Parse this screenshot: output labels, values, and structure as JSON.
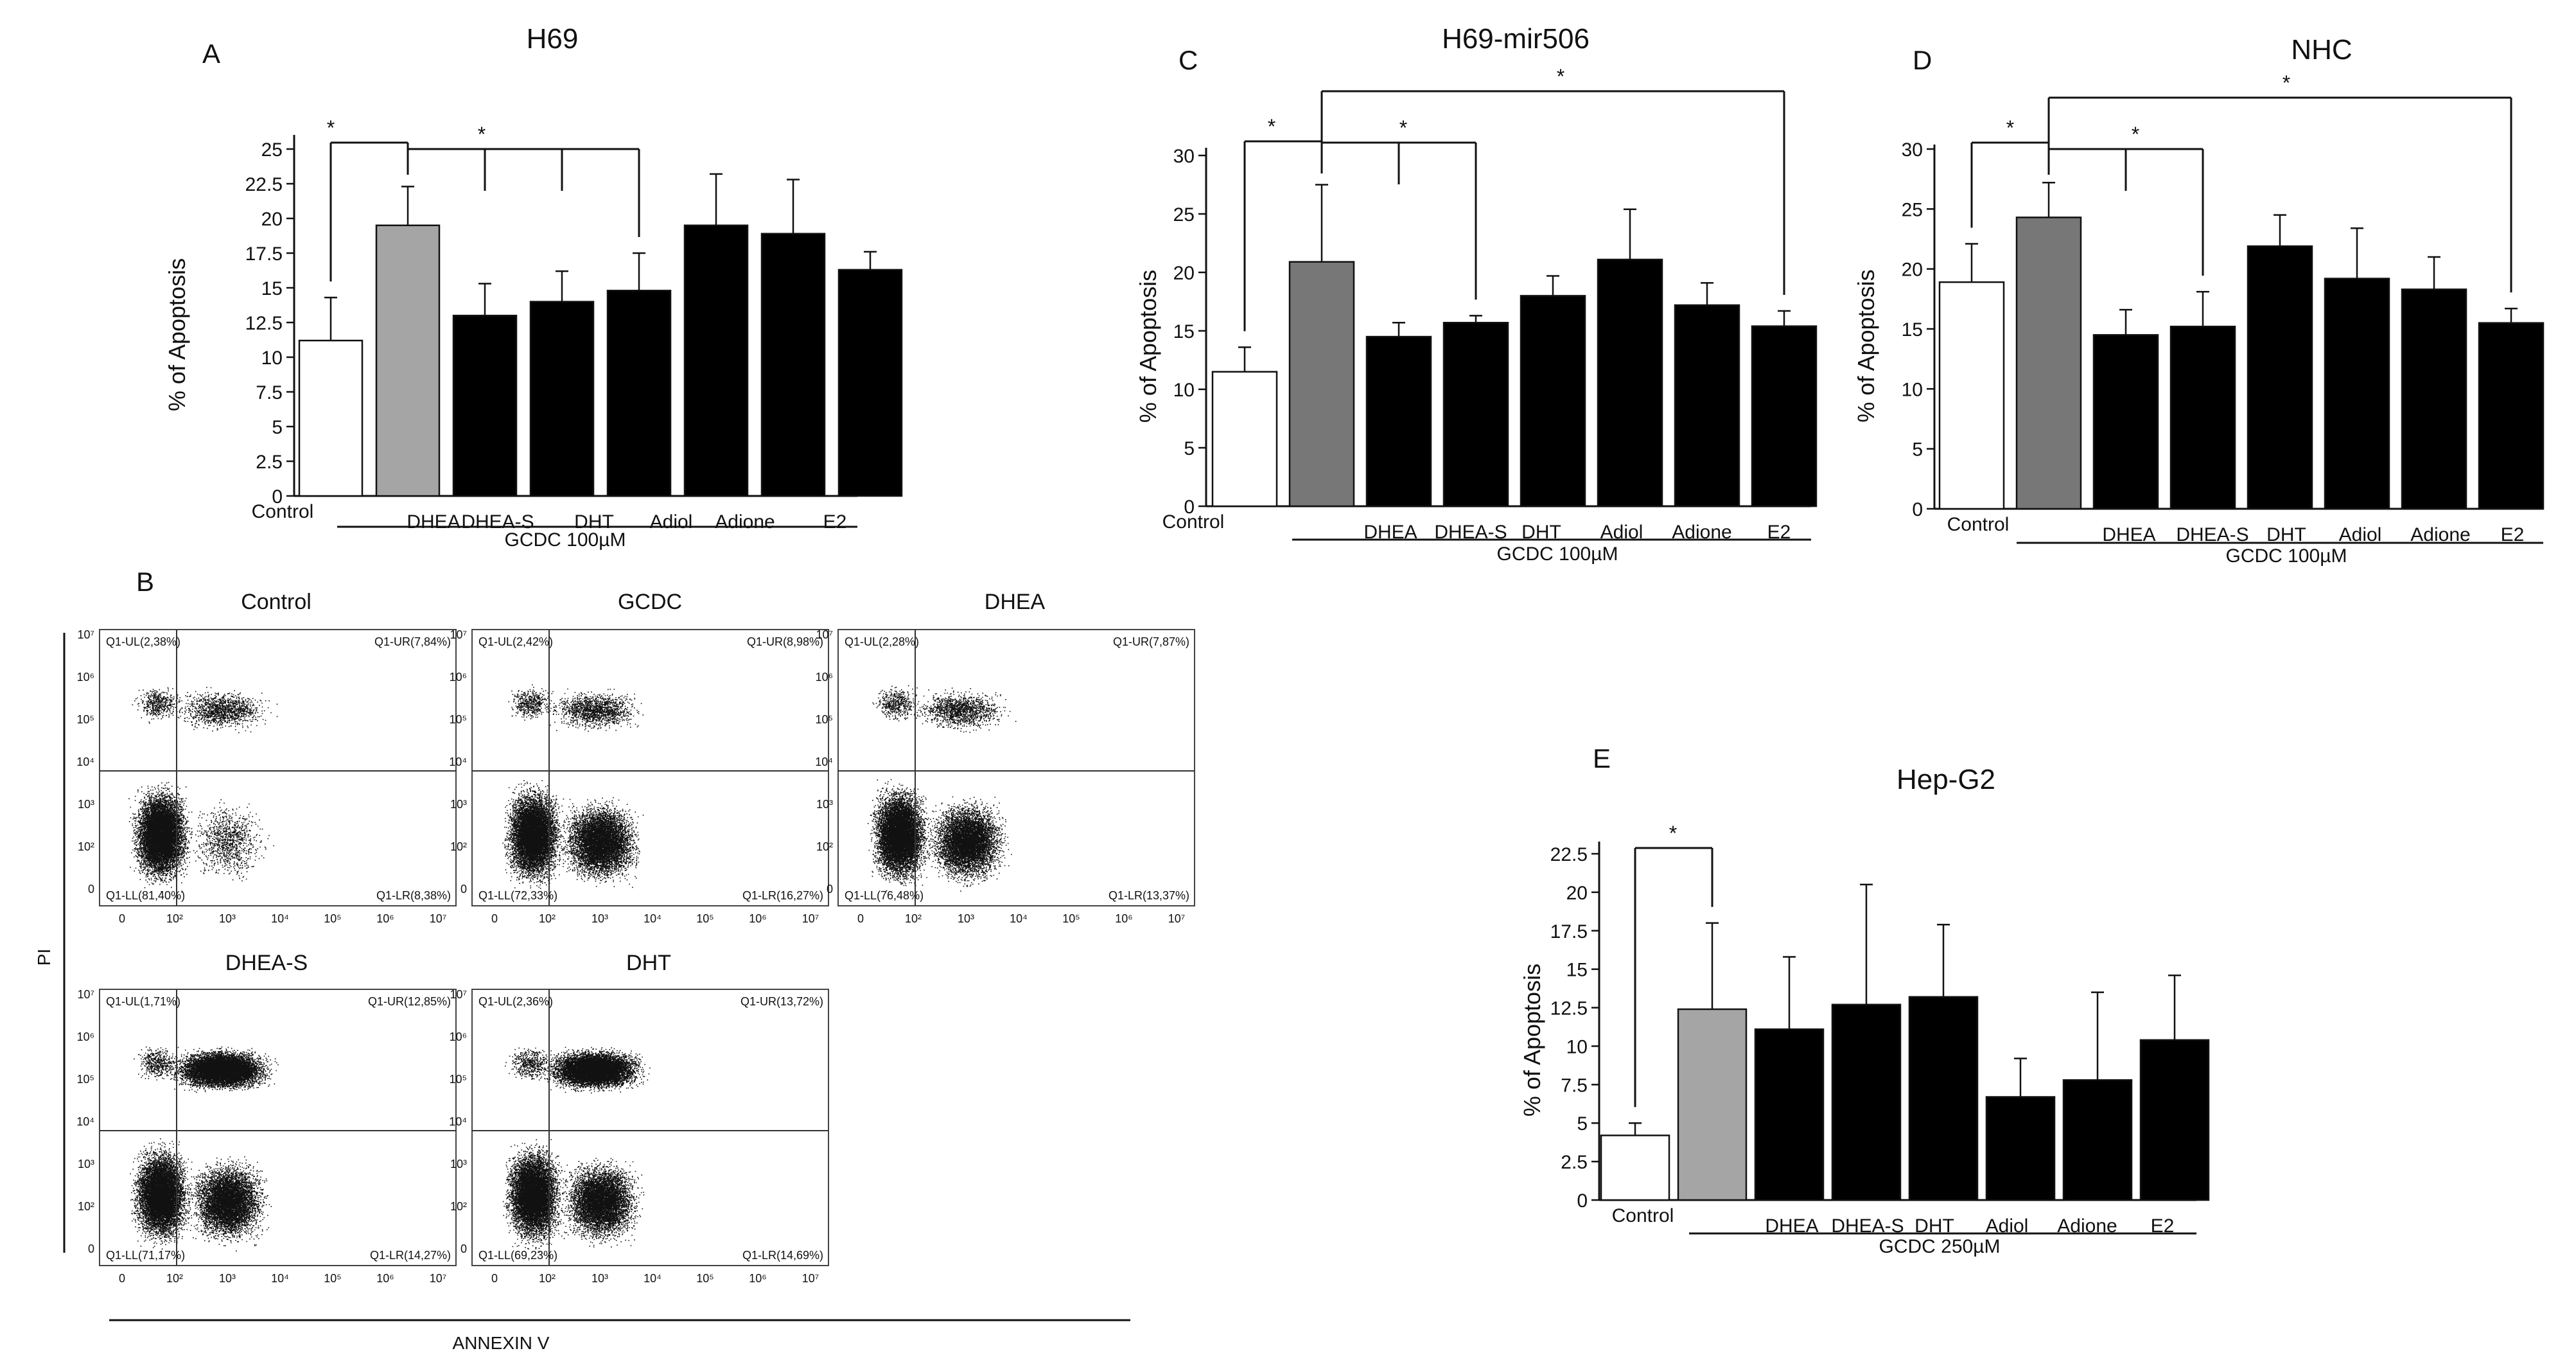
{
  "chart_data": [
    {
      "type": "bar",
      "panel_letter": "A",
      "title": "H69",
      "ylabel": "% of Apoptosis",
      "ylim": [
        0,
        25
      ],
      "yticks": [
        "0",
        "2.5",
        "5",
        "7.5",
        "10",
        "12.5",
        "15",
        "17.5",
        "20",
        "22.5",
        "25"
      ],
      "categories": [
        "Control",
        "",
        "DHEA",
        "DHEA-S",
        "DHT",
        "Adiol",
        "Adione",
        "E2"
      ],
      "values": [
        11.2,
        19.5,
        13.0,
        14.0,
        14.8,
        19.5,
        18.9,
        16.3
      ],
      "errors": [
        3.1,
        2.8,
        2.3,
        2.2,
        2.7,
        3.7,
        3.9,
        1.3
      ],
      "bar_fills": [
        "#ffffff",
        "#a5a5a5",
        "#000000",
        "#000000",
        "#000000",
        "#000000",
        "#000000",
        "#000000"
      ],
      "treatment_label": "GCDC 100µM",
      "significance": [
        {
          "from": 0,
          "to": [
            1
          ],
          "label": "*"
        },
        {
          "from": 1,
          "to": [
            2,
            3,
            4
          ],
          "label": "*"
        }
      ]
    },
    {
      "type": "bar",
      "panel_letter": "C",
      "title": "H69-mir506",
      "ylabel": "% of Apoptosis",
      "ylim": [
        0,
        30
      ],
      "yticks": [
        "0",
        "5",
        "10",
        "15",
        "20",
        "25",
        "30"
      ],
      "categories": [
        "Control",
        "",
        "DHEA",
        "DHEA-S",
        "DHT",
        "Adiol",
        "Adione",
        "E2"
      ],
      "values": [
        11.5,
        20.9,
        14.5,
        15.7,
        18.0,
        21.1,
        17.2,
        15.4
      ],
      "errors": [
        2.1,
        6.6,
        1.2,
        0.6,
        1.7,
        4.3,
        1.9,
        1.3
      ],
      "bar_fills": [
        "#ffffff",
        "#777777",
        "#000000",
        "#000000",
        "#000000",
        "#000000",
        "#000000",
        "#000000"
      ],
      "treatment_label": "GCDC 100µM",
      "significance": [
        {
          "from": 0,
          "to": [
            1
          ],
          "label": "*"
        },
        {
          "from": 1,
          "to": [
            2,
            3
          ],
          "label": "*"
        },
        {
          "from": 1,
          "to": [
            7
          ],
          "label": "*"
        }
      ]
    },
    {
      "type": "bar",
      "panel_letter": "D",
      "title": "NHC",
      "ylabel": "% of Apoptosis",
      "ylim": [
        0,
        30
      ],
      "yticks": [
        "0",
        "5",
        "10",
        "15",
        "20",
        "25",
        "30"
      ],
      "categories": [
        "Control",
        "",
        "DHEA",
        "DHEA-S",
        "DHT",
        "Adiol",
        "Adione",
        "E2"
      ],
      "values": [
        18.9,
        24.3,
        14.5,
        15.2,
        21.9,
        19.2,
        18.3,
        15.5
      ],
      "errors": [
        3.2,
        2.9,
        2.1,
        2.9,
        2.6,
        4.2,
        2.7,
        1.2
      ],
      "bar_fills": [
        "#ffffff",
        "#777777",
        "#000000",
        "#000000",
        "#000000",
        "#000000",
        "#000000",
        "#000000"
      ],
      "treatment_label": "GCDC 100µM",
      "significance": [
        {
          "from": 0,
          "to": [
            1
          ],
          "label": "*"
        },
        {
          "from": 1,
          "to": [
            2,
            3
          ],
          "label": "*"
        },
        {
          "from": 1,
          "to": [
            7
          ],
          "label": "*"
        }
      ]
    },
    {
      "type": "bar",
      "panel_letter": "E",
      "title": "Hep-G2",
      "ylabel": "% of Apoptosis",
      "ylim": [
        0,
        22.5
      ],
      "yticks": [
        "0",
        "2.5",
        "5",
        "7.5",
        "10",
        "12.5",
        "15",
        "17.5",
        "20",
        "22.5"
      ],
      "categories": [
        "Control",
        "",
        "DHEA",
        "DHEA-S",
        "DHT",
        "Adiol",
        "Adione",
        "E2"
      ],
      "values": [
        4.2,
        12.4,
        11.1,
        12.7,
        13.2,
        6.7,
        7.8,
        10.4
      ],
      "errors": [
        0.8,
        5.6,
        4.7,
        7.8,
        4.7,
        2.5,
        5.7,
        4.2
      ],
      "bar_fills": [
        "#ffffff",
        "#a5a5a5",
        "#000000",
        "#000000",
        "#000000",
        "#000000",
        "#000000",
        "#000000"
      ],
      "treatment_label": "GCDC 250µM",
      "significance": [
        {
          "from": 0,
          "to": [
            1
          ],
          "label": "*"
        }
      ]
    }
  ],
  "flow_cytometry": {
    "panel_letter": "B",
    "y_axis_label": "PI",
    "x_axis_label": "ANNEXIN V",
    "tick_labels": [
      "0",
      "10²",
      "10³",
      "10⁴",
      "10⁵",
      "10⁶",
      "10⁷"
    ],
    "plots": [
      {
        "title": "Control",
        "ul": "Q1-UL(2,38%)",
        "ur": "Q1-UR(7,84%)",
        "ll": "Q1-LL(81,40%)",
        "lr": "Q1-LR(8,38%)"
      },
      {
        "title": "GCDC",
        "ul": "Q1-UL(2,42%)",
        "ur": "Q1-UR(8,98%)",
        "ll": "Q1-LL(72,33%)",
        "lr": "Q1-LR(16,27%)"
      },
      {
        "title": "DHEA",
        "ul": "Q1-UL(2,28%)",
        "ur": "Q1-UR(7,87%)",
        "ll": "Q1-LL(76,48%)",
        "lr": "Q1-LR(13,37%)"
      },
      {
        "title": "DHEA-S",
        "ul": "Q1-UL(1,71%)",
        "ur": "Q1-UR(12,85%)",
        "ll": "Q1-LL(71,17%)",
        "lr": "Q1-LR(14,27%)"
      },
      {
        "title": "DHT",
        "ul": "Q1-UL(2,36%)",
        "ur": "Q1-UR(13,72%)",
        "ll": "Q1-LL(69,23%)",
        "lr": "Q1-LR(14,69%)"
      }
    ]
  }
}
